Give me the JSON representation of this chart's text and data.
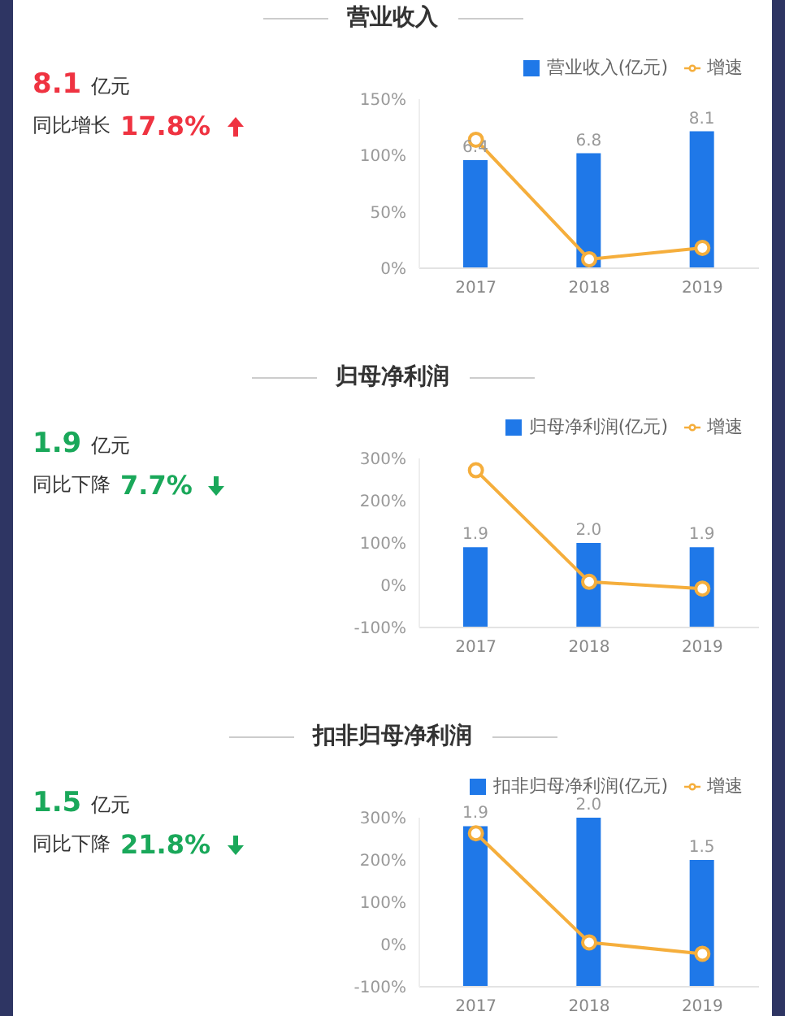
{
  "chart_data": [
    {
      "type": "bar",
      "title": "营业收入",
      "categories": [
        "2017",
        "2018",
        "2019"
      ],
      "series": [
        {
          "name": "营业收入(亿元)",
          "color": "#1f78e8",
          "values": [
            6.4,
            6.8,
            8.1
          ],
          "axis": "y2",
          "value_labels": [
            "6.4",
            "6.8",
            "8.1"
          ]
        },
        {
          "type": "line",
          "name": "增速",
          "color": "#f5ae3c",
          "values": [
            114,
            8,
            18
          ]
        }
      ],
      "ylim": [
        0,
        150
      ],
      "yticks": [
        {
          "value": 0,
          "label": "0%"
        },
        {
          "value": 50,
          "label": "50%"
        },
        {
          "value": 100,
          "label": "100%"
        },
        {
          "value": 150,
          "label": "150%"
        }
      ],
      "y2lim": [
        0,
        10
      ],
      "legend": "top right",
      "marker": "circle",
      "annotations": [
        "8.1",
        "亿元",
        "同比增长",
        "17.8%"
      ]
    },
    {
      "type": "bar",
      "title": "归母净利润",
      "categories": [
        "2017",
        "2018",
        "2019"
      ],
      "series": [
        {
          "name": "归母净利润(亿元)",
          "color": "#1f78e8",
          "values": [
            1.9,
            2.0,
            1.9
          ],
          "axis": "y2",
          "value_labels": [
            "1.9",
            "2.0",
            "1.9"
          ]
        },
        {
          "type": "line",
          "name": "增速",
          "color": "#f5ae3c",
          "values": [
            272,
            8,
            -8
          ]
        }
      ],
      "ylim": [
        -100,
        300
      ],
      "yticks": [
        {
          "value": -100,
          "label": "-100%"
        },
        {
          "value": 0,
          "label": "0%"
        },
        {
          "value": 100,
          "label": "100%"
        },
        {
          "value": 200,
          "label": "200%"
        },
        {
          "value": 300,
          "label": "300%"
        }
      ],
      "y2lim": [
        0,
        4
      ],
      "legend": "top right",
      "marker": "circle",
      "annotations": [
        "1.9",
        "亿元",
        "同比下降",
        "7.7%"
      ]
    },
    {
      "type": "bar",
      "title": "扣非归母净利润",
      "categories": [
        "2017",
        "2018",
        "2019"
      ],
      "series": [
        {
          "name": "扣非归母净利润(亿元)",
          "color": "#1f78e8",
          "values": [
            1.9,
            2.0,
            1.5
          ],
          "axis": "y2",
          "value_labels": [
            "1.9",
            "2.0",
            "1.5"
          ]
        },
        {
          "type": "line",
          "name": "增速",
          "color": "#f5ae3c",
          "values": [
            263,
            5,
            -22
          ]
        }
      ],
      "ylim": [
        -100,
        300
      ],
      "yticks": [
        {
          "value": -100,
          "label": "-100%"
        },
        {
          "value": 0,
          "label": "0%"
        },
        {
          "value": 100,
          "label": "100%"
        },
        {
          "value": 200,
          "label": "200%"
        },
        {
          "value": 300,
          "label": "300%"
        }
      ],
      "y2lim": [
        0,
        2
      ],
      "legend": "top right",
      "marker": "circle",
      "annotations": [
        "1.5",
        "亿元",
        "同比下降",
        "21.8%"
      ]
    }
  ]
}
